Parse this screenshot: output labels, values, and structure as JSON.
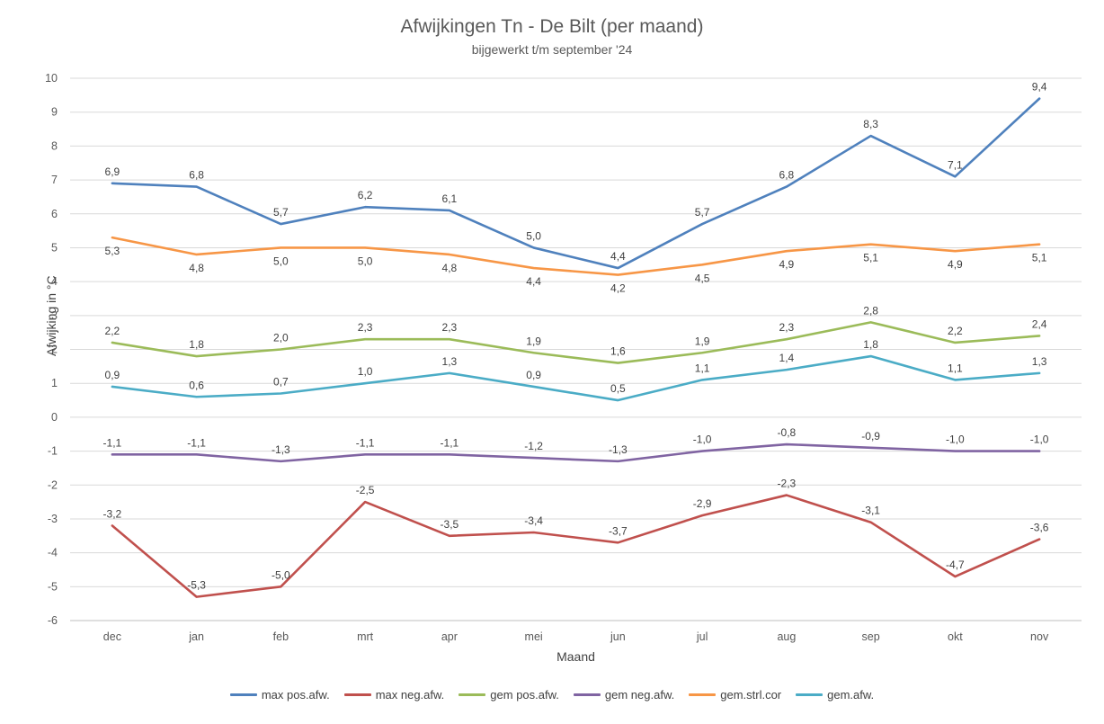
{
  "chart": {
    "title": "Afwijkingen Tn - De Bilt (per maand)",
    "subtitle": "bijgewerkt t/m september '24",
    "xlabel": "Maand",
    "ylabel": "Afwijking in °C"
  },
  "chart_data": {
    "type": "line",
    "categories": [
      "dec",
      "jan",
      "feb",
      "mrt",
      "apr",
      "mei",
      "jun",
      "jul",
      "aug",
      "sep",
      "okt",
      "nov"
    ],
    "ylim": [
      -6,
      10
    ],
    "ytick_step": 1,
    "grid": true,
    "legend_position": "bottom",
    "decimal_separator": ",",
    "series": [
      {
        "name": "max pos.afw.",
        "color": "#4F81BD",
        "label_position": "above",
        "values": [
          6.9,
          6.8,
          5.7,
          6.2,
          6.1,
          5.0,
          4.4,
          5.7,
          6.8,
          8.3,
          7.1,
          9.4
        ]
      },
      {
        "name": "max neg.afw.",
        "color": "#C0504D",
        "label_position": "above",
        "values": [
          -3.2,
          -5.3,
          -5.0,
          -2.5,
          -3.5,
          -3.4,
          -3.7,
          -2.9,
          -2.3,
          -3.1,
          -4.7,
          -3.6
        ]
      },
      {
        "name": "gem pos.afw.",
        "color": "#9BBB59",
        "label_position": "above",
        "values": [
          2.2,
          1.8,
          2.0,
          2.3,
          2.3,
          1.9,
          1.6,
          1.9,
          2.3,
          2.8,
          2.2,
          2.4
        ]
      },
      {
        "name": "gem neg.afw.",
        "color": "#8064A2",
        "label_position": "above",
        "values": [
          -1.1,
          -1.1,
          -1.3,
          -1.1,
          -1.1,
          -1.2,
          -1.3,
          -1.0,
          -0.8,
          -0.9,
          -1.0,
          -1.0
        ]
      },
      {
        "name": "gem.strl.cor",
        "color": "#F79646",
        "label_position": "below",
        "values": [
          5.3,
          4.8,
          5.0,
          5.0,
          4.8,
          4.4,
          4.2,
          4.5,
          4.9,
          5.1,
          4.9,
          5.1
        ]
      },
      {
        "name": "gem.afw.",
        "color": "#4BACC6",
        "label_position": "above",
        "values": [
          0.9,
          0.6,
          0.7,
          1.0,
          1.3,
          0.9,
          0.5,
          1.1,
          1.4,
          1.8,
          1.1,
          1.3
        ]
      }
    ]
  }
}
